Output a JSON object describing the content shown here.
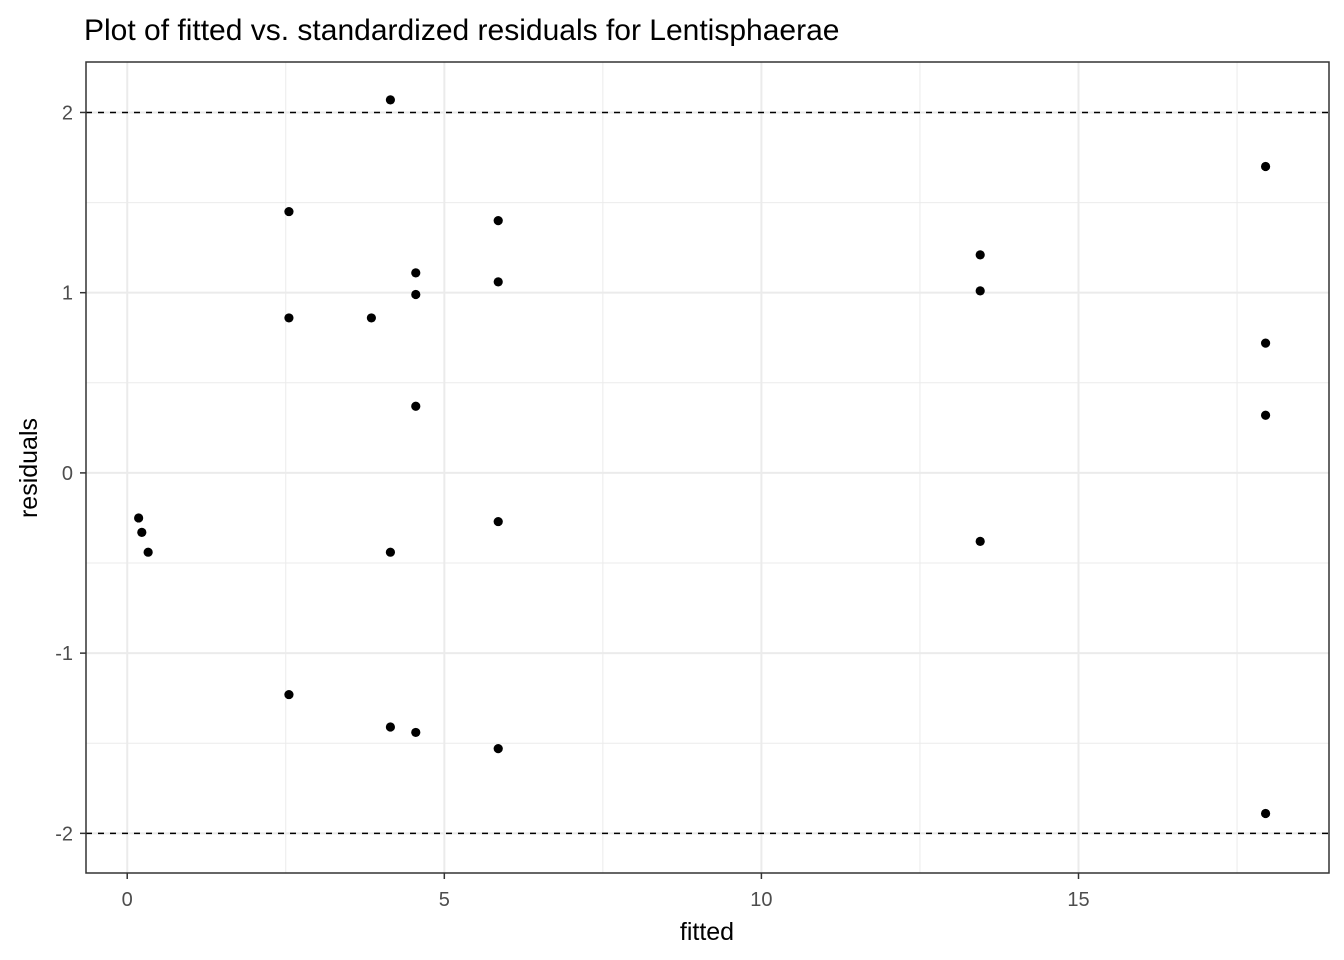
{
  "chart_data": {
    "type": "scatter",
    "title": "Plot of fitted vs. standardized residuals for Lentisphaerae",
    "xlabel": "fitted",
    "ylabel": "residuals",
    "xlim": [
      -0.65,
      18.95
    ],
    "ylim": [
      -2.22,
      2.28
    ],
    "x_ticks": [
      0,
      5,
      10,
      15
    ],
    "x_tick_labels": [
      "0",
      "5",
      "10",
      "15"
    ],
    "y_ticks": [
      -2,
      -1,
      0,
      1,
      2
    ],
    "y_tick_labels": [
      "-2",
      "-1",
      "0",
      "1",
      "2"
    ],
    "reference_lines": [
      2,
      -2
    ],
    "grid": true,
    "point_color": "#000000",
    "points": [
      {
        "x": 0.18,
        "y": -0.25
      },
      {
        "x": 0.23,
        "y": -0.33
      },
      {
        "x": 0.33,
        "y": -0.44
      },
      {
        "x": 2.55,
        "y": 1.45
      },
      {
        "x": 2.55,
        "y": 0.86
      },
      {
        "x": 2.55,
        "y": -1.23
      },
      {
        "x": 3.85,
        "y": 0.86
      },
      {
        "x": 4.15,
        "y": 2.07
      },
      {
        "x": 4.15,
        "y": -0.44
      },
      {
        "x": 4.15,
        "y": -1.41
      },
      {
        "x": 4.55,
        "y": 1.11
      },
      {
        "x": 4.55,
        "y": 0.99
      },
      {
        "x": 4.55,
        "y": 0.37
      },
      {
        "x": 4.55,
        "y": -1.44
      },
      {
        "x": 5.85,
        "y": 1.4
      },
      {
        "x": 5.85,
        "y": 1.06
      },
      {
        "x": 5.85,
        "y": -0.27
      },
      {
        "x": 5.85,
        "y": -1.53
      },
      {
        "x": 13.45,
        "y": 1.21
      },
      {
        "x": 13.45,
        "y": 1.01
      },
      {
        "x": 13.45,
        "y": -0.38
      },
      {
        "x": 17.95,
        "y": 1.7
      },
      {
        "x": 17.95,
        "y": 0.72
      },
      {
        "x": 17.95,
        "y": 0.32
      },
      {
        "x": 17.95,
        "y": -1.89
      }
    ]
  }
}
